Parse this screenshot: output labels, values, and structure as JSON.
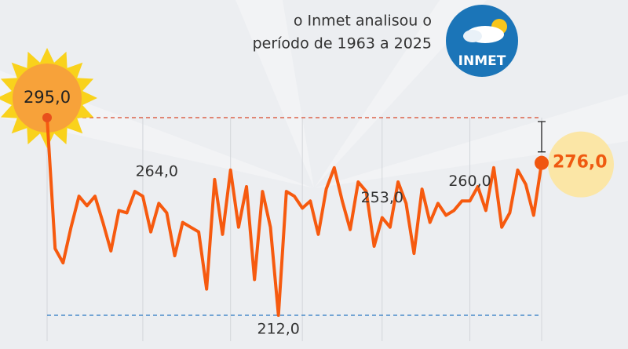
{
  "chart_data": {
    "type": "line",
    "subtitle": [
      "o Inmet analisou o",
      "período de 1963 a 2025"
    ],
    "logo": "INMET",
    "series": [
      {
        "color": "#f65a0f",
        "values": [
          295,
          240,
          234,
          249,
          262,
          258,
          262,
          251,
          239,
          256,
          255,
          264,
          262,
          247,
          259,
          255,
          237,
          251,
          249,
          247,
          223,
          269,
          246,
          273,
          249,
          266,
          227,
          264,
          249,
          212,
          264,
          262,
          257,
          260,
          246,
          265,
          274,
          260,
          248,
          268,
          264,
          241,
          253,
          249,
          268,
          259,
          238,
          265,
          251,
          259,
          254,
          256,
          260,
          260,
          266,
          256,
          274,
          249,
          255,
          273,
          267,
          254,
          276
        ],
        "value_labels": [
          "295,0",
          null,
          null,
          null,
          null,
          null,
          null,
          null,
          null,
          null,
          null,
          "264,0",
          null,
          null,
          null,
          null,
          null,
          null,
          null,
          null,
          null,
          null,
          null,
          null,
          null,
          null,
          null,
          null,
          null,
          "212,0",
          null,
          null,
          null,
          null,
          null,
          null,
          null,
          null,
          null,
          null,
          null,
          null,
          "253,0",
          null,
          null,
          null,
          null,
          null,
          null,
          null,
          null,
          null,
          null,
          "260,0",
          null,
          null,
          null,
          null,
          null,
          null,
          null,
          null,
          "276,0"
        ]
      }
    ]
  }
}
